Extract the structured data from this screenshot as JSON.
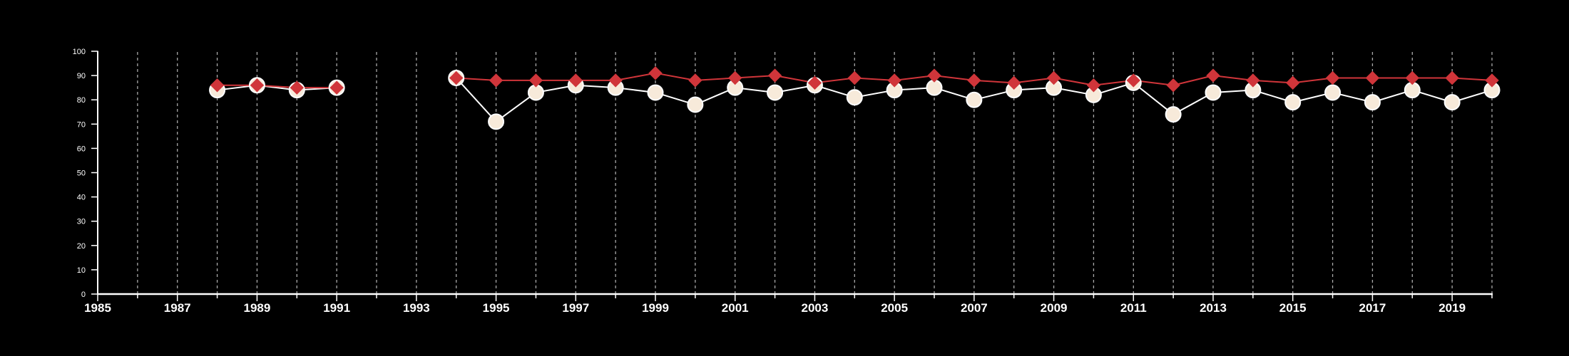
{
  "chart_data": {
    "type": "line",
    "title": "",
    "xlabel": "",
    "ylabel": "",
    "xlim": [
      1985,
      2020
    ],
    "ylim": [
      0,
      100
    ],
    "grid": "vertical dashed",
    "background": "#000000",
    "x_tick_labels": [
      "1985",
      "1987",
      "1989",
      "1991",
      "1993",
      "1995",
      "1997",
      "1999",
      "2001",
      "2003",
      "2005",
      "2007",
      "2009",
      "2011",
      "2013",
      "2015",
      "2017",
      "2019"
    ],
    "y_tick_labels": [
      "0",
      "10",
      "20",
      "30",
      "40",
      "50",
      "60",
      "70",
      "80",
      "90",
      "100"
    ],
    "x": [
      1988,
      1989,
      1990,
      1991,
      1994,
      1995,
      1996,
      1997,
      1998,
      1999,
      2000,
      2001,
      2002,
      2003,
      2004,
      2005,
      2006,
      2007,
      2008,
      2009,
      2010,
      2011,
      2012,
      2013,
      2014,
      2015,
      2016,
      2017,
      2018,
      2019,
      2020
    ],
    "segments": [
      [
        0,
        3
      ],
      [
        4,
        30
      ]
    ],
    "series": [
      {
        "marker": "circle",
        "color": "#ffffff",
        "marker_fill": "#f7eada",
        "values": [
          84,
          86,
          84,
          85,
          89,
          71,
          83,
          86,
          85,
          83,
          78,
          85,
          83,
          86,
          81,
          84,
          85,
          80,
          84,
          85,
          82,
          87,
          74,
          83,
          84,
          79,
          83,
          79,
          84,
          79,
          84
        ]
      },
      {
        "marker": "diamond",
        "color": "#d0353a",
        "values": [
          86,
          86,
          85,
          85,
          89,
          88,
          88,
          88,
          88,
          91,
          88,
          89,
          90,
          87,
          89,
          88,
          90,
          88,
          87,
          89,
          86,
          88,
          86,
          90,
          88,
          87,
          89,
          89,
          89,
          89,
          88
        ]
      }
    ]
  }
}
